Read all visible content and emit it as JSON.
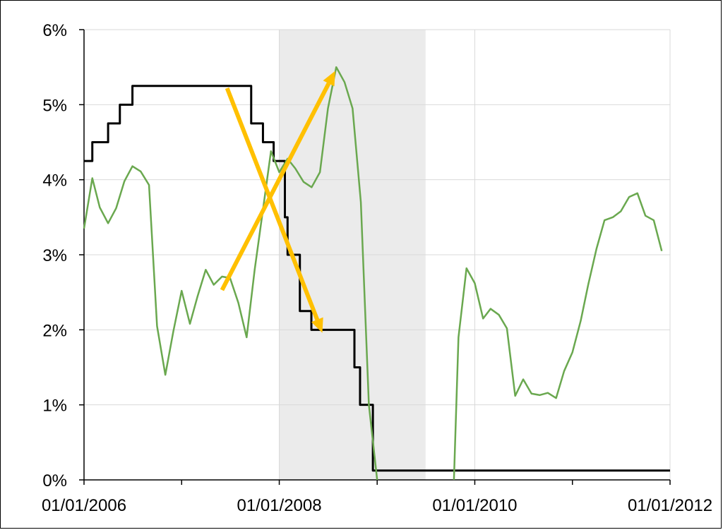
{
  "chart_data": {
    "type": "line",
    "title": "",
    "xlabel": "",
    "ylabel": "",
    "xlim": [
      "2006-01-01",
      "2012-01-01"
    ],
    "ylim": [
      0,
      6
    ],
    "y_tick_values": [
      0,
      1,
      2,
      3,
      4,
      5,
      6
    ],
    "y_tick_labels": [
      "0%",
      "1%",
      "2%",
      "3%",
      "4%",
      "5%",
      "6%"
    ],
    "x_tick_values": [
      "2006-01-01",
      "2008-01-01",
      "2010-01-01",
      "2012-01-01"
    ],
    "x_tick_labels": [
      "01/01/2006",
      "01/01/2008",
      "01/01/2010",
      "01/01/2012"
    ],
    "x_minor_ticks": [
      "2007-01-01",
      "2009-01-01",
      "2011-01-01"
    ],
    "grid": true,
    "legend": "none",
    "shaded_region": {
      "start": "2008-01-01",
      "end": "2009-07-01",
      "color": "#ebebeb"
    },
    "series": [
      {
        "color": "#000000",
        "style": "step",
        "points": [
          [
            "2006-01-01",
            4.25
          ],
          [
            "2006-02-01",
            4.5
          ],
          [
            "2006-04-01",
            4.75
          ],
          [
            "2006-05-15",
            5.0
          ],
          [
            "2006-07-01",
            5.25
          ],
          [
            "2007-09-18",
            4.75
          ],
          [
            "2007-11-01",
            4.5
          ],
          [
            "2007-12-11",
            4.25
          ],
          [
            "2008-01-22",
            3.5
          ],
          [
            "2008-02-01",
            3.0
          ],
          [
            "2008-03-18",
            2.25
          ],
          [
            "2008-04-30",
            2.0
          ],
          [
            "2008-10-08",
            1.5
          ],
          [
            "2008-10-29",
            1.0
          ],
          [
            "2008-12-16",
            0.125
          ],
          [
            "2012-01-01",
            0.125
          ]
        ]
      },
      {
        "color": "#6aa84f",
        "style": "line",
        "points": [
          [
            "2006-01-01",
            3.35
          ],
          [
            "2006-02-01",
            4.02
          ],
          [
            "2006-03-01",
            3.63
          ],
          [
            "2006-04-01",
            3.42
          ],
          [
            "2006-05-01",
            3.62
          ],
          [
            "2006-06-01",
            3.98
          ],
          [
            "2006-07-01",
            4.18
          ],
          [
            "2006-08-01",
            4.11
          ],
          [
            "2006-09-01",
            3.93
          ],
          [
            "2006-10-01",
            2.05
          ],
          [
            "2006-11-01",
            1.4
          ],
          [
            "2006-12-01",
            1.98
          ],
          [
            "2007-01-01",
            2.52
          ],
          [
            "2007-02-01",
            2.08
          ],
          [
            "2007-03-01",
            2.44
          ],
          [
            "2007-04-01",
            2.8
          ],
          [
            "2007-05-01",
            2.6
          ],
          [
            "2007-06-01",
            2.71
          ],
          [
            "2007-07-01",
            2.69
          ],
          [
            "2007-08-01",
            2.36
          ],
          [
            "2007-09-01",
            1.9
          ],
          [
            "2007-10-01",
            2.8
          ],
          [
            "2007-11-01",
            3.6
          ],
          [
            "2007-12-01",
            4.38
          ],
          [
            "2008-01-01",
            4.1
          ],
          [
            "2008-02-01",
            4.28
          ],
          [
            "2008-03-01",
            4.15
          ],
          [
            "2008-04-01",
            3.97
          ],
          [
            "2008-05-01",
            3.9
          ],
          [
            "2008-06-01",
            4.1
          ],
          [
            "2008-07-01",
            4.95
          ],
          [
            "2008-08-01",
            5.5
          ],
          [
            "2008-09-01",
            5.3
          ],
          [
            "2008-10-01",
            4.95
          ],
          [
            "2008-11-01",
            3.7
          ],
          [
            "2008-12-01",
            1.0
          ],
          [
            "2009-01-01",
            0.0
          ]
        ]
      },
      {
        "color": "#6aa84f",
        "style": "line",
        "points": [
          [
            "2009-10-15",
            0.0
          ],
          [
            "2009-11-01",
            1.9
          ],
          [
            "2009-12-01",
            2.82
          ],
          [
            "2010-01-01",
            2.62
          ],
          [
            "2010-02-01",
            2.15
          ],
          [
            "2010-03-01",
            2.28
          ],
          [
            "2010-04-01",
            2.2
          ],
          [
            "2010-05-01",
            2.02
          ],
          [
            "2010-06-01",
            1.12
          ],
          [
            "2010-07-01",
            1.34
          ],
          [
            "2010-08-01",
            1.15
          ],
          [
            "2010-09-01",
            1.13
          ],
          [
            "2010-10-01",
            1.16
          ],
          [
            "2010-11-01",
            1.09
          ],
          [
            "2010-12-01",
            1.45
          ],
          [
            "2011-01-01",
            1.7
          ],
          [
            "2011-02-01",
            2.12
          ],
          [
            "2011-03-01",
            2.6
          ],
          [
            "2011-04-01",
            3.08
          ],
          [
            "2011-05-01",
            3.46
          ],
          [
            "2011-06-01",
            3.5
          ],
          [
            "2011-07-01",
            3.58
          ],
          [
            "2011-08-01",
            3.77
          ],
          [
            "2011-09-01",
            3.82
          ],
          [
            "2011-10-01",
            3.52
          ],
          [
            "2011-11-01",
            3.46
          ],
          [
            "2011-12-01",
            3.05
          ]
        ]
      }
    ],
    "annotations": [
      {
        "type": "arrow",
        "color": "#ffc000",
        "from": [
          "2007-06-20",
          5.22
        ],
        "to": [
          "2008-06-10",
          1.96
        ]
      },
      {
        "type": "arrow",
        "color": "#ffc000",
        "from": [
          "2007-06-01",
          2.53
        ],
        "to": [
          "2008-07-28",
          5.45
        ]
      }
    ]
  }
}
